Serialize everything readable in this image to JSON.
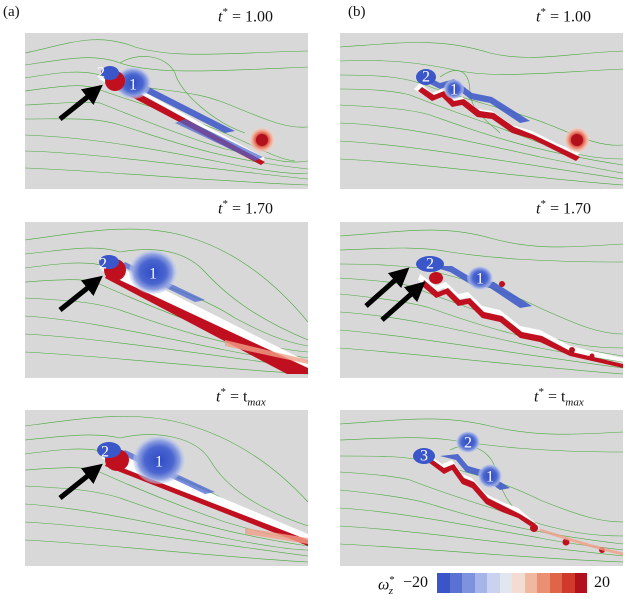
{
  "panels": {
    "a_label": "(a)",
    "b_label": "(b)"
  },
  "times": {
    "row1_var": "t",
    "row1_star": "*",
    "row1_value": "= 1.00",
    "row2_var": "t",
    "row2_star": "*",
    "row2_value": "= 1.70",
    "row3_var": "t",
    "row3_star": "*",
    "row3_value": "= t",
    "row3_sub": "max"
  },
  "vortices": {
    "one": "1",
    "two": "2",
    "three": "3"
  },
  "colorbar": {
    "symbol": "ω",
    "symbol_sup": "*",
    "symbol_sub": "z",
    "min_label": "−20",
    "max_label": "20",
    "colors": [
      "#3b55c8",
      "#5a72d4",
      "#7e92de",
      "#a6b5e8",
      "#c9d3f0",
      "#e2e6ee",
      "#f3dcd2",
      "#f1b8a0",
      "#ea8f72",
      "#df6549",
      "#cf3a2d",
      "#b2101d"
    ]
  },
  "palette": {
    "background": "#d8d8d8",
    "streamline": "#4aa83e",
    "positive_vortex": "#c0101f",
    "negative_vortex": "#3a56c8"
  }
}
